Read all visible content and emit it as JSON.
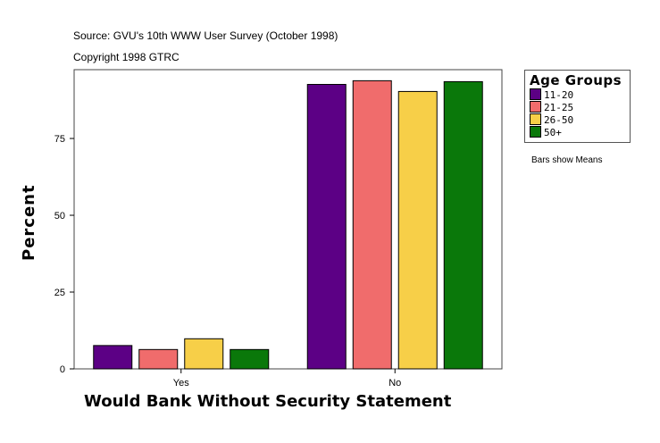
{
  "header": {
    "source": "Source: GVU's 10th WWW User Survey (October 1998)",
    "copyright": "Copyright 1998 GTRC"
  },
  "note": "Bars show Means",
  "chart_data": {
    "type": "bar",
    "title": "",
    "xlabel": "Would Bank Without Security Statement",
    "ylabel": "Percent",
    "categories": [
      "Yes",
      "No"
    ],
    "ylim": [
      0,
      97.4
    ],
    "yticks": [
      0,
      25,
      50,
      75
    ],
    "grid": false,
    "legend_title": "Age Groups",
    "legend_placement": "right",
    "series": [
      {
        "name": "11-20",
        "color": "#5c0085",
        "values": [
          7.6,
          92.6
        ]
      },
      {
        "name": "21-25",
        "color": "#f06c6c",
        "values": [
          6.3,
          93.8
        ]
      },
      {
        "name": "26-50",
        "color": "#f7cf48",
        "values": [
          9.8,
          90.3
        ]
      },
      {
        "name": "50+",
        "color": "#0a780a",
        "values": [
          6.3,
          93.5
        ]
      }
    ]
  }
}
